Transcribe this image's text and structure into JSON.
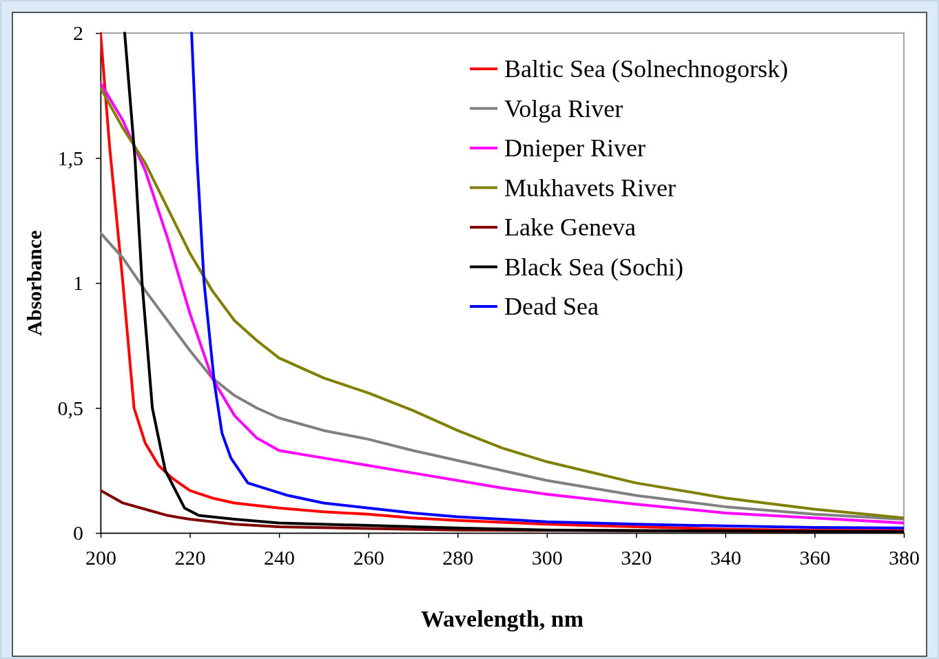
{
  "chart_data": {
    "type": "line",
    "xlabel": "Wavelength, nm",
    "ylabel": "Absorbance",
    "xlim": [
      200,
      380
    ],
    "xticks": [
      200,
      220,
      240,
      260,
      280,
      300,
      320,
      340,
      360,
      380
    ],
    "ylim": [
      0,
      2
    ],
    "yticks": [
      0,
      {
        "value": 0.5,
        "label": "0,5"
      },
      1,
      {
        "value": 1.5,
        "label": "1,5"
      },
      2
    ],
    "grid": false,
    "legend": "top right",
    "marker": "none",
    "line_style": "solid",
    "series": [
      {
        "name": "Baltic Sea (Solnechnogorsk)",
        "color": "#ff0000",
        "x": [
          200,
          202,
          205,
          207.5,
          210,
          213,
          216,
          220,
          225,
          230,
          240,
          250,
          260,
          270,
          280,
          300,
          320,
          340,
          360,
          380
        ],
        "values": [
          2.0,
          1.55,
          1.0,
          0.5,
          0.36,
          0.27,
          0.22,
          0.17,
          0.14,
          0.12,
          0.1,
          0.085,
          0.075,
          0.06,
          0.05,
          0.035,
          0.025,
          0.015,
          0.01,
          0.01
        ]
      },
      {
        "name": "Volga River",
        "color": "#808080",
        "x": [
          200,
          205,
          210,
          215,
          220,
          225,
          230,
          235,
          240,
          250,
          260,
          270,
          280,
          290,
          300,
          320,
          340,
          360,
          380
        ],
        "values": [
          1.2,
          1.1,
          0.97,
          0.85,
          0.73,
          0.62,
          0.55,
          0.5,
          0.46,
          0.41,
          0.375,
          0.33,
          0.29,
          0.25,
          0.21,
          0.15,
          0.105,
          0.075,
          0.055
        ]
      },
      {
        "name": "Dnieper River",
        "color": "#ff00ff",
        "x": [
          200,
          205,
          210,
          215,
          220,
          225,
          230,
          235,
          240,
          250,
          260,
          270,
          280,
          290,
          300,
          320,
          340,
          360,
          380
        ],
        "values": [
          1.8,
          1.65,
          1.45,
          1.18,
          0.88,
          0.62,
          0.47,
          0.38,
          0.33,
          0.3,
          0.27,
          0.24,
          0.21,
          0.18,
          0.155,
          0.115,
          0.08,
          0.06,
          0.04
        ]
      },
      {
        "name": "Mukhavets River",
        "color": "#808000",
        "x": [
          200,
          205,
          210,
          215,
          220,
          225,
          230,
          235,
          240,
          250,
          260,
          270,
          280,
          290,
          300,
          320,
          340,
          360,
          380
        ],
        "values": [
          1.78,
          1.62,
          1.48,
          1.3,
          1.12,
          0.97,
          0.85,
          0.77,
          0.7,
          0.62,
          0.56,
          0.49,
          0.41,
          0.34,
          0.285,
          0.2,
          0.14,
          0.095,
          0.06
        ]
      },
      {
        "name": "Lake Geneva",
        "color": "#800000",
        "x": [
          200,
          205,
          210,
          215,
          220,
          230,
          240,
          260,
          280,
          300,
          340,
          380
        ],
        "values": [
          0.17,
          0.12,
          0.095,
          0.07,
          0.055,
          0.035,
          0.025,
          0.018,
          0.012,
          0.01,
          0.007,
          0.005
        ]
      },
      {
        "name": "Black Sea (Sochi)",
        "color": "#000000",
        "x": [
          205.4,
          207.7,
          209.3,
          211.6,
          214.5,
          218.8,
          222,
          230,
          240,
          260,
          280,
          300,
          340,
          380
        ],
        "values": [
          2.0,
          1.5,
          1.0,
          0.5,
          0.25,
          0.1,
          0.07,
          0.055,
          0.04,
          0.03,
          0.02,
          0.012,
          0.008,
          0.005
        ]
      },
      {
        "name": "Dead Sea",
        "color": "#0000ff",
        "x": [
          220.4,
          221.6,
          223.2,
          225.5,
          227.2,
          229.2,
          233,
          242,
          250,
          260,
          270,
          280,
          300,
          320,
          340,
          360,
          380
        ],
        "values": [
          2.0,
          1.5,
          1.0,
          0.6,
          0.4,
          0.3,
          0.2,
          0.15,
          0.12,
          0.1,
          0.08,
          0.065,
          0.045,
          0.035,
          0.028,
          0.022,
          0.02
        ]
      }
    ]
  }
}
